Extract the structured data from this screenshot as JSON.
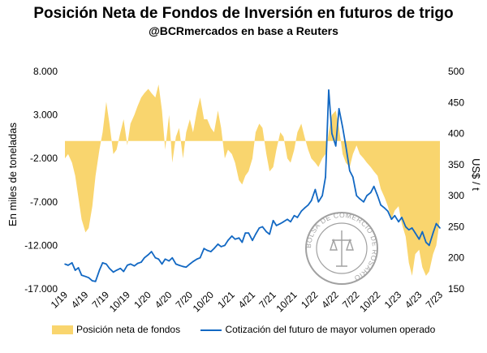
{
  "chart_data": {
    "type": "area+line",
    "title": "Posición Neta de Fondos de Inversión en futuros de trigo",
    "subtitle": "@BCRmercados en base a Reuters",
    "y_left_label": "En miles de toneladas",
    "y_right_label": "US$ / t",
    "y_left_range": [
      -17000,
      8000
    ],
    "y_left_ticks": [
      "8.000",
      "3.000",
      "-2.000",
      "-7.000",
      "-12.000",
      "-17.000"
    ],
    "y_left_tick_values": [
      8000,
      3000,
      -2000,
      -7000,
      -12000,
      -17000
    ],
    "y_right_range": [
      150,
      500
    ],
    "y_right_ticks": [
      "500",
      "450",
      "400",
      "350",
      "300",
      "250",
      "200",
      "150"
    ],
    "y_right_tick_values": [
      500,
      450,
      400,
      350,
      300,
      250,
      200,
      150
    ],
    "x_range": [
      "2019-01",
      "2023-07"
    ],
    "x_ticks": [
      "1/19",
      "4/19",
      "7/19",
      "10/19",
      "1/20",
      "4/20",
      "7/20",
      "10/20",
      "1/21",
      "4/21",
      "7/21",
      "10/21",
      "1/22",
      "4/22",
      "7/22",
      "10/22",
      "1/23",
      "4/23",
      "7/23"
    ],
    "x_tick_dates": [
      "2019-01",
      "2019-04",
      "2019-07",
      "2019-10",
      "2020-01",
      "2020-04",
      "2020-07",
      "2020-10",
      "2021-01",
      "2021-04",
      "2021-07",
      "2021-10",
      "2022-01",
      "2022-04",
      "2022-07",
      "2022-10",
      "2023-01",
      "2023-04",
      "2023-07"
    ],
    "series": [
      {
        "name": "Posición neta de fondos",
        "axis": "left",
        "style": "area",
        "color": "#f9d56e",
        "x": [
          "2019-01",
          "2019-01-15",
          "2019-02",
          "2019-02-15",
          "2019-03",
          "2019-03-15",
          "2019-04",
          "2019-04-15",
          "2019-05",
          "2019-05-15",
          "2019-06",
          "2019-06-15",
          "2019-07",
          "2019-07-15",
          "2019-08",
          "2019-08-15",
          "2019-09",
          "2019-09-15",
          "2019-10",
          "2019-10-15",
          "2019-11",
          "2019-11-15",
          "2019-12",
          "2019-12-15",
          "2020-01",
          "2020-01-15",
          "2020-02",
          "2020-02-15",
          "2020-03",
          "2020-03-15",
          "2020-04",
          "2020-04-15",
          "2020-05",
          "2020-05-15",
          "2020-06",
          "2020-06-15",
          "2020-07",
          "2020-07-15",
          "2020-08",
          "2020-08-15",
          "2020-09",
          "2020-09-15",
          "2020-10",
          "2020-10-15",
          "2020-11",
          "2020-11-15",
          "2020-12",
          "2020-12-15",
          "2021-01",
          "2021-01-15",
          "2021-02",
          "2021-02-15",
          "2021-03",
          "2021-03-15",
          "2021-04",
          "2021-04-15",
          "2021-05",
          "2021-05-15",
          "2021-06",
          "2021-06-15",
          "2021-07",
          "2021-07-15",
          "2021-08",
          "2021-08-15",
          "2021-09",
          "2021-09-15",
          "2021-10",
          "2021-10-15",
          "2021-11",
          "2021-11-15",
          "2021-12",
          "2021-12-15",
          "2022-01",
          "2022-01-15",
          "2022-02",
          "2022-02-15",
          "2022-03",
          "2022-03-15",
          "2022-04",
          "2022-04-15",
          "2022-05",
          "2022-05-15",
          "2022-06",
          "2022-06-15",
          "2022-07",
          "2022-07-15",
          "2022-08",
          "2022-08-15",
          "2022-09",
          "2022-09-15",
          "2022-10",
          "2022-10-15",
          "2022-11",
          "2022-11-15",
          "2022-12",
          "2022-12-15",
          "2023-01",
          "2023-01-15",
          "2023-02",
          "2023-02-15",
          "2023-03",
          "2023-03-15",
          "2023-04",
          "2023-04-15",
          "2023-05",
          "2023-05-15",
          "2023-06",
          "2023-06-15",
          "2023-07"
        ],
        "values": [
          -2000,
          -1500,
          -2500,
          -4000,
          -6500,
          -9000,
          -10500,
          -10000,
          -7500,
          -4000,
          -1000,
          1000,
          4500,
          2000,
          -1500,
          -1000,
          1000,
          2500,
          -500,
          2000,
          3000,
          4000,
          5000,
          5500,
          6000,
          5500,
          5000,
          6500,
          3500,
          -1000,
          3000,
          -2500,
          500,
          1500,
          -2000,
          1000,
          2500,
          1000,
          3500,
          5000,
          2500,
          2500,
          1500,
          1000,
          3500,
          1500,
          -2000,
          -1000,
          -1500,
          -2500,
          -4500,
          -5000,
          -4000,
          -3500,
          -2000,
          1000,
          2000,
          1500,
          -1500,
          -3500,
          -3000,
          -1000,
          1000,
          500,
          -2000,
          -2500,
          -1000,
          1000,
          2000,
          500,
          -1000,
          -2000,
          -2500,
          -3000,
          -2000,
          -1500,
          1000,
          3000,
          3500,
          1500,
          -1500,
          -2500,
          -3000,
          -1500,
          -500,
          -1500,
          -2000,
          -2500,
          -3000,
          -3500,
          -4000,
          -5500,
          -6500,
          -7500,
          -9000,
          -8000,
          -7500,
          -9500,
          -11000,
          -14000,
          -15500,
          -13000,
          -12500,
          -14500,
          -15500,
          -15000,
          -13000,
          -12000,
          -9000
        ]
      },
      {
        "name": "Cotización del futuro de mayor volumen operado",
        "axis": "right",
        "style": "line",
        "color": "#1268c3",
        "x": [
          "2019-01",
          "2019-01-15",
          "2019-02",
          "2019-02-15",
          "2019-03",
          "2019-03-15",
          "2019-04",
          "2019-04-15",
          "2019-05",
          "2019-05-15",
          "2019-06",
          "2019-06-15",
          "2019-07",
          "2019-07-15",
          "2019-08",
          "2019-08-15",
          "2019-09",
          "2019-09-15",
          "2019-10",
          "2019-10-15",
          "2019-11",
          "2019-11-15",
          "2019-12",
          "2019-12-15",
          "2020-01",
          "2020-01-15",
          "2020-02",
          "2020-02-15",
          "2020-03",
          "2020-03-15",
          "2020-04",
          "2020-04-15",
          "2020-05",
          "2020-05-15",
          "2020-06",
          "2020-06-15",
          "2020-07",
          "2020-07-15",
          "2020-08",
          "2020-08-15",
          "2020-09",
          "2020-09-15",
          "2020-10",
          "2020-10-15",
          "2020-11",
          "2020-11-15",
          "2020-12",
          "2020-12-15",
          "2021-01",
          "2021-01-15",
          "2021-02",
          "2021-02-15",
          "2021-03",
          "2021-03-15",
          "2021-04",
          "2021-04-15",
          "2021-05",
          "2021-05-15",
          "2021-06",
          "2021-06-15",
          "2021-07",
          "2021-07-15",
          "2021-08",
          "2021-08-15",
          "2021-09",
          "2021-09-15",
          "2021-10",
          "2021-10-15",
          "2021-11",
          "2021-11-15",
          "2021-12",
          "2021-12-15",
          "2022-01",
          "2022-01-15",
          "2022-02",
          "2022-02-15",
          "2022-03",
          "2022-03-15",
          "2022-04",
          "2022-04-15",
          "2022-05",
          "2022-05-15",
          "2022-06",
          "2022-06-15",
          "2022-07",
          "2022-07-15",
          "2022-08",
          "2022-08-15",
          "2022-09",
          "2022-09-15",
          "2022-10",
          "2022-10-15",
          "2022-11",
          "2022-11-15",
          "2022-12",
          "2022-12-15",
          "2023-01",
          "2023-01-15",
          "2023-02",
          "2023-02-15",
          "2023-03",
          "2023-03-15",
          "2023-04",
          "2023-04-15",
          "2023-05",
          "2023-05-15",
          "2023-06",
          "2023-06-15",
          "2023-07"
        ],
        "values": [
          190,
          188,
          192,
          180,
          184,
          172,
          170,
          168,
          163,
          162,
          180,
          192,
          190,
          183,
          177,
          180,
          183,
          178,
          188,
          190,
          187,
          191,
          193,
          200,
          205,
          210,
          200,
          198,
          190,
          198,
          195,
          200,
          190,
          188,
          186,
          185,
          190,
          194,
          198,
          200,
          215,
          212,
          210,
          215,
          222,
          218,
          220,
          228,
          235,
          230,
          232,
          225,
          240,
          240,
          228,
          238,
          248,
          250,
          242,
          238,
          260,
          252,
          255,
          258,
          262,
          258,
          268,
          265,
          275,
          280,
          285,
          292,
          310,
          290,
          300,
          330,
          470,
          400,
          380,
          440,
          410,
          380,
          340,
          330,
          300,
          295,
          290,
          300,
          305,
          315,
          300,
          285,
          280,
          275,
          262,
          268,
          258,
          265,
          250,
          245,
          248,
          240,
          230,
          242,
          225,
          220,
          240,
          255,
          248
        ]
      }
    ]
  },
  "legend": {
    "area_label": "Posición neta de fondos",
    "line_label": "Cotización del futuro de mayor volumen operado"
  }
}
